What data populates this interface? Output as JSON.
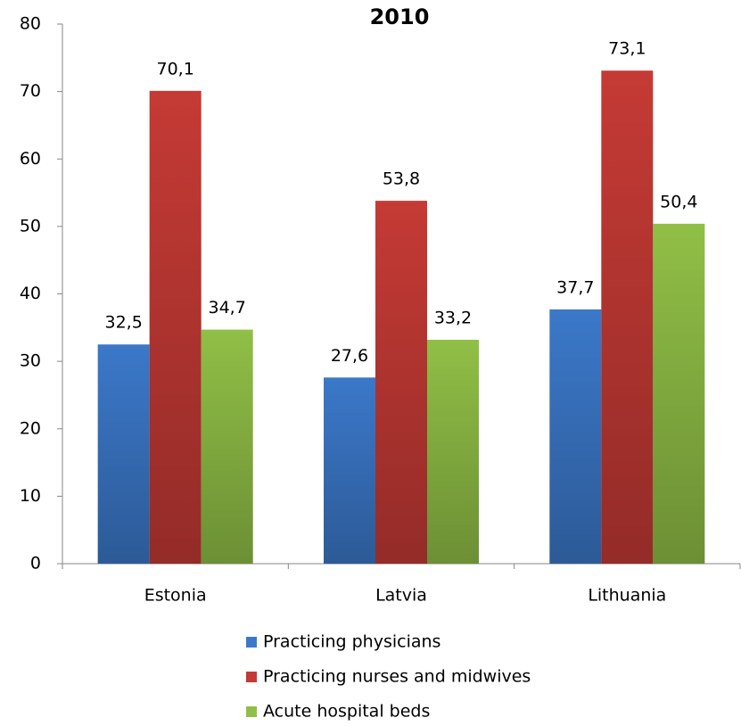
{
  "chart_data": {
    "type": "bar",
    "title": "2010",
    "categories": [
      "Estonia",
      "Latvia",
      "Lithuania"
    ],
    "series": [
      {
        "name": "Practicing physicians",
        "color": "#3b78c9",
        "values": [
          32.5,
          27.6,
          37.7
        ],
        "value_labels": [
          "32,5",
          "27,6",
          "37,7"
        ]
      },
      {
        "name": "Practicing nurses and midwives",
        "color": "#c53a35",
        "values": [
          70.1,
          53.8,
          73.1
        ],
        "value_labels": [
          "70,1",
          "53,8",
          "73,1"
        ]
      },
      {
        "name": "Acute hospital beds",
        "color": "#90bf46",
        "values": [
          34.7,
          33.2,
          50.4
        ],
        "value_labels": [
          "34,7",
          "33,2",
          "50,4"
        ]
      }
    ],
    "ylim": [
      0,
      80
    ],
    "yticks": [
      0,
      10,
      20,
      30,
      40,
      50,
      60,
      70,
      80
    ],
    "grid": false,
    "legend": "bottom"
  }
}
